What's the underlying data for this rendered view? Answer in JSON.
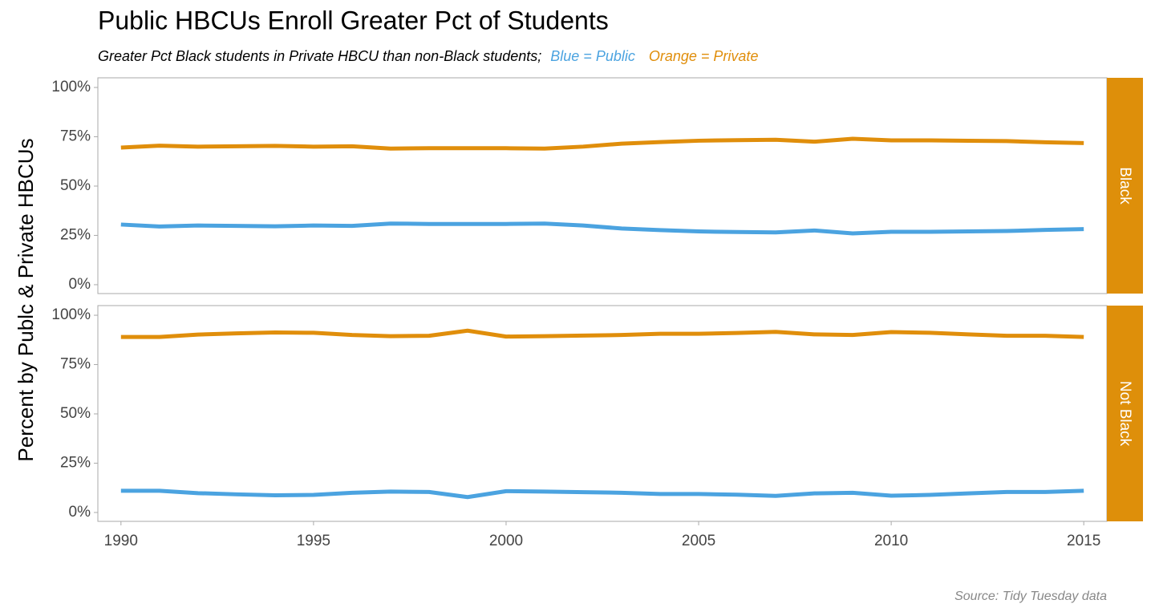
{
  "header": {
    "title": "Public HBCUs Enroll Greater Pct of Students",
    "subtitle": "Greater Pct Black students in Private HBCU than non-Black students;",
    "subtitle_public": "Blue = Public",
    "subtitle_private": "Orange = Private"
  },
  "ylabel": "Percent by Publc & Private HBCUs",
  "source": "Source: Tidy Tuesday data",
  "chart_data": [
    {
      "type": "line",
      "facet": "Black",
      "x": [
        1990,
        1991,
        1992,
        1993,
        1994,
        1995,
        1996,
        1997,
        1998,
        1999,
        2000,
        2001,
        2002,
        2003,
        2004,
        2005,
        2006,
        2007,
        2008,
        2009,
        2010,
        2011,
        2012,
        2013,
        2014,
        2015
      ],
      "xlim": [
        1989.4,
        2015.6
      ],
      "ylim": [
        -4.5,
        104.9
      ],
      "yticks": [
        {
          "value": 0,
          "label": "0%"
        },
        {
          "value": 25,
          "label": "25%"
        },
        {
          "value": 50,
          "label": "50%"
        },
        {
          "value": 75,
          "label": "75%"
        },
        {
          "value": 100,
          "label": "100%"
        }
      ],
      "series": [
        {
          "name": "Public",
          "color": "#4ba3e0",
          "values": [
            30.5,
            29.5,
            30,
            29.8,
            29.6,
            30,
            29.8,
            31,
            30.8,
            30.8,
            30.8,
            31,
            30,
            28.5,
            27.7,
            27,
            26.7,
            26.5,
            27.5,
            26,
            26.8,
            26.8,
            27,
            27.2,
            27.8,
            28.2
          ]
        },
        {
          "name": "Private",
          "color": "#e08e0b",
          "values": [
            69.5,
            70.5,
            70,
            70.2,
            70.4,
            70,
            70.2,
            69,
            69.2,
            69.2,
            69.2,
            69,
            70,
            71.5,
            72.3,
            73,
            73.3,
            73.5,
            72.5,
            74,
            73.2,
            73.2,
            73,
            72.8,
            72.2,
            71.8
          ]
        }
      ]
    },
    {
      "type": "line",
      "facet": "Not Black",
      "x": [
        1990,
        1991,
        1992,
        1993,
        1994,
        1995,
        1996,
        1997,
        1998,
        1999,
        2000,
        2001,
        2002,
        2003,
        2004,
        2005,
        2006,
        2007,
        2008,
        2009,
        2010,
        2011,
        2012,
        2013,
        2014,
        2015
      ],
      "xlim": [
        1989.4,
        2015.6
      ],
      "xticks": [
        1990,
        1995,
        2000,
        2005,
        2010,
        2015
      ],
      "ylim": [
        -4.5,
        104.9
      ],
      "yticks": [
        {
          "value": 0,
          "label": "0%"
        },
        {
          "value": 25,
          "label": "25%"
        },
        {
          "value": 50,
          "label": "50%"
        },
        {
          "value": 75,
          "label": "75%"
        },
        {
          "value": 100,
          "label": "100%"
        }
      ],
      "series": [
        {
          "name": "Public",
          "color": "#4ba3e0",
          "values": [
            11,
            11,
            9.8,
            9.2,
            8.7,
            8.9,
            10,
            10.6,
            10.4,
            7.8,
            10.8,
            10.6,
            10.3,
            10,
            9.4,
            9.4,
            9,
            8.4,
            9.7,
            10,
            8.5,
            8.9,
            9.7,
            10.4,
            10.4,
            11
          ]
        },
        {
          "name": "Private",
          "color": "#e08e0b",
          "values": [
            89,
            89,
            90.2,
            90.8,
            91.3,
            91.1,
            90,
            89.4,
            89.6,
            92.2,
            89.2,
            89.4,
            89.7,
            90,
            90.6,
            90.6,
            91,
            91.6,
            90.3,
            90,
            91.5,
            91.1,
            90.3,
            89.6,
            89.6,
            89
          ]
        }
      ]
    }
  ]
}
